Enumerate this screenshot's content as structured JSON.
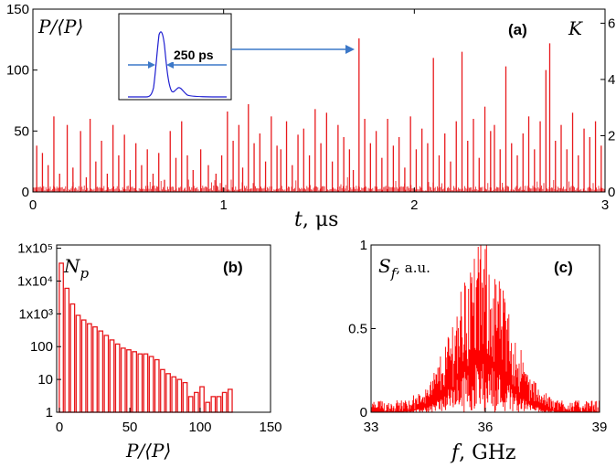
{
  "chart_data": [
    {
      "id": "a",
      "type": "line",
      "panel_label": "(a)",
      "xlabel_var": "t",
      "xlabel_unit": ", μs",
      "ylabel_left": "P/⟨P⟩",
      "ylabel_right": "K",
      "xlim": [
        0,
        3
      ],
      "ylim_left": [
        0,
        150
      ],
      "ylim_right": [
        0,
        6.5
      ],
      "x_ticks": [
        "0",
        "1",
        "2",
        "3"
      ],
      "y_ticks_left": [
        "0",
        "50",
        "100",
        "150"
      ],
      "y_ticks_right": [
        "0",
        "2",
        "4",
        "6"
      ],
      "series_color": "#e8191c",
      "peaks": [
        [
          0.02,
          38
        ],
        [
          0.05,
          32
        ],
        [
          0.08,
          22
        ],
        [
          0.11,
          62
        ],
        [
          0.14,
          15
        ],
        [
          0.18,
          55
        ],
        [
          0.21,
          20
        ],
        [
          0.25,
          50
        ],
        [
          0.28,
          12
        ],
        [
          0.3,
          60
        ],
        [
          0.33,
          25
        ],
        [
          0.36,
          42
        ],
        [
          0.39,
          15
        ],
        [
          0.42,
          55
        ],
        [
          0.45,
          30
        ],
        [
          0.48,
          47
        ],
        [
          0.51,
          18
        ],
        [
          0.54,
          40
        ],
        [
          0.57,
          22
        ],
        [
          0.6,
          35
        ],
        [
          0.63,
          15
        ],
        [
          0.66,
          32
        ],
        [
          0.69,
          10
        ],
        [
          0.72,
          50
        ],
        [
          0.75,
          28
        ],
        [
          0.78,
          58
        ],
        [
          0.81,
          30
        ],
        [
          0.84,
          18
        ],
        [
          0.88,
          35
        ],
        [
          0.92,
          22
        ],
        [
          0.96,
          15
        ],
        [
          0.99,
          30
        ],
        [
          1.02,
          66
        ],
        [
          1.05,
          42
        ],
        [
          1.08,
          55
        ],
        [
          1.1,
          20
        ],
        [
          1.13,
          72
        ],
        [
          1.16,
          40
        ],
        [
          1.19,
          48
        ],
        [
          1.22,
          25
        ],
        [
          1.25,
          62
        ],
        [
          1.28,
          38
        ],
        [
          1.3,
          35
        ],
        [
          1.33,
          58
        ],
        [
          1.36,
          22
        ],
        [
          1.39,
          47
        ],
        [
          1.42,
          52
        ],
        [
          1.45,
          30
        ],
        [
          1.48,
          68
        ],
        [
          1.51,
          40
        ],
        [
          1.54,
          65
        ],
        [
          1.57,
          25
        ],
        [
          1.6,
          55
        ],
        [
          1.63,
          45
        ],
        [
          1.66,
          35
        ],
        [
          1.68,
          18
        ],
        [
          1.71,
          126
        ],
        [
          1.74,
          60
        ],
        [
          1.77,
          40
        ],
        [
          1.8,
          50
        ],
        [
          1.83,
          28
        ],
        [
          1.86,
          60
        ],
        [
          1.89,
          38
        ],
        [
          1.92,
          45
        ],
        [
          1.95,
          20
        ],
        [
          1.98,
          62
        ],
        [
          2.01,
          35
        ],
        [
          2.04,
          52
        ],
        [
          2.07,
          40
        ],
        [
          2.1,
          110
        ],
        [
          2.13,
          30
        ],
        [
          2.16,
          48
        ],
        [
          2.19,
          25
        ],
        [
          2.22,
          58
        ],
        [
          2.25,
          115
        ],
        [
          2.28,
          42
        ],
        [
          2.31,
          60
        ],
        [
          2.34,
          28
        ],
        [
          2.37,
          70
        ],
        [
          2.4,
          50
        ],
        [
          2.42,
          55
        ],
        [
          2.45,
          35
        ],
        [
          2.48,
          103
        ],
        [
          2.51,
          40
        ],
        [
          2.54,
          30
        ],
        [
          2.57,
          48
        ],
        [
          2.6,
          62
        ],
        [
          2.63,
          35
        ],
        [
          2.66,
          58
        ],
        [
          2.69,
          100
        ],
        [
          2.71,
          122
        ],
        [
          2.74,
          42
        ],
        [
          2.77,
          55
        ],
        [
          2.8,
          35
        ],
        [
          2.83,
          65
        ],
        [
          2.86,
          30
        ],
        [
          2.89,
          52
        ],
        [
          2.92,
          45
        ],
        [
          2.95,
          58
        ],
        [
          2.98,
          38
        ]
      ],
      "inset": {
        "annotation": "250 ps"
      }
    },
    {
      "id": "b",
      "type": "bar",
      "panel_label": "(b)",
      "ylabel": "N_p",
      "ylabel_main": "N",
      "ylabel_sub": "p",
      "xlabel": "P/⟨P⟩",
      "xlim": [
        -2,
        150
      ],
      "ylim_log10": [
        0,
        5.1
      ],
      "scale_y": "log",
      "x_ticks": [
        "0",
        "50",
        "100",
        "150"
      ],
      "y_ticks": [
        "1",
        "10",
        "100",
        "1x10³",
        "1x10⁴",
        "1x10⁵"
      ],
      "series_color": "#e8191c",
      "bin_width": 4,
      "bins_x": [
        0,
        4,
        8,
        12,
        16,
        20,
        24,
        28,
        32,
        36,
        40,
        44,
        48,
        52,
        56,
        60,
        64,
        68,
        72,
        76,
        80,
        84,
        88,
        92,
        96,
        100,
        104,
        108,
        112,
        116,
        120
      ],
      "values": [
        35000,
        6000,
        2000,
        900,
        650,
        500,
        400,
        300,
        220,
        160,
        120,
        90,
        80,
        70,
        60,
        60,
        50,
        40,
        20,
        15,
        12,
        10,
        8,
        3,
        4,
        6,
        2,
        3,
        3,
        4,
        5
      ]
    },
    {
      "id": "c",
      "type": "area",
      "panel_label": "(c)",
      "ylabel_main": "S",
      "ylabel_sub": "f",
      "ylabel_unit": ", a.u.",
      "xlabel_var": "f",
      "xlabel_unit": ", GHz",
      "xlim": [
        33,
        39
      ],
      "ylim": [
        0,
        1
      ],
      "x_ticks": [
        "33",
        "36",
        "39"
      ],
      "y_ticks": [
        "0",
        "0.5",
        "1"
      ],
      "series_color": "#ff0000",
      "envelope": {
        "center_GHz": 35.9,
        "width_GHz": 0.9,
        "peak": 0.75
      }
    }
  ]
}
